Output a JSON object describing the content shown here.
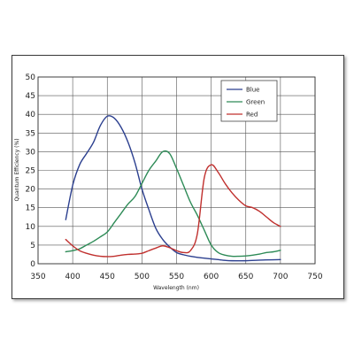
{
  "chart_data": {
    "type": "line",
    "xlabel": "Wavelength (nm)",
    "ylabel": "Quantum Efficiency (%)",
    "xlim": [
      350,
      750
    ],
    "ylim": [
      0,
      50
    ],
    "x_ticks": [
      350,
      400,
      450,
      500,
      550,
      600,
      650,
      700,
      750
    ],
    "y_ticks": [
      0,
      5,
      10,
      15,
      20,
      25,
      30,
      35,
      40,
      45,
      50
    ],
    "grid": true,
    "legend_position": "top-right",
    "series": [
      {
        "name": "Blue",
        "color": "#2b3f8f",
        "points": [
          [
            390,
            11.8
          ],
          [
            400,
            21
          ],
          [
            410,
            26.5
          ],
          [
            420,
            29.5
          ],
          [
            430,
            32.5
          ],
          [
            440,
            37
          ],
          [
            450,
            39.5
          ],
          [
            460,
            39
          ],
          [
            470,
            36.5
          ],
          [
            480,
            32.5
          ],
          [
            490,
            27
          ],
          [
            500,
            20
          ],
          [
            510,
            14.5
          ],
          [
            520,
            9.5
          ],
          [
            530,
            6.5
          ],
          [
            540,
            4.5
          ],
          [
            550,
            3
          ],
          [
            560,
            2.4
          ],
          [
            570,
            2
          ],
          [
            580,
            1.7
          ],
          [
            590,
            1.5
          ],
          [
            600,
            1.3
          ],
          [
            610,
            1.1
          ],
          [
            620,
            0.9
          ],
          [
            630,
            0.8
          ],
          [
            650,
            0.8
          ],
          [
            675,
            1
          ],
          [
            700,
            1.1
          ]
        ]
      },
      {
        "name": "Green",
        "color": "#2e8b57",
        "points": [
          [
            390,
            3.2
          ],
          [
            400,
            3.5
          ],
          [
            410,
            4
          ],
          [
            420,
            5
          ],
          [
            430,
            6
          ],
          [
            440,
            7.2
          ],
          [
            450,
            8.5
          ],
          [
            460,
            11
          ],
          [
            470,
            13.5
          ],
          [
            480,
            16
          ],
          [
            490,
            18
          ],
          [
            500,
            21.5
          ],
          [
            510,
            25
          ],
          [
            520,
            27.5
          ],
          [
            530,
            30
          ],
          [
            540,
            29.5
          ],
          [
            550,
            25.5
          ],
          [
            560,
            21
          ],
          [
            570,
            16.5
          ],
          [
            580,
            13
          ],
          [
            590,
            9
          ],
          [
            600,
            5
          ],
          [
            610,
            3
          ],
          [
            620,
            2.3
          ],
          [
            630,
            2
          ],
          [
            640,
            2
          ],
          [
            650,
            2.1
          ],
          [
            660,
            2.3
          ],
          [
            670,
            2.6
          ],
          [
            680,
            3
          ],
          [
            690,
            3.2
          ],
          [
            700,
            3.6
          ]
        ]
      },
      {
        "name": "Red",
        "color": "#c0302e",
        "points": [
          [
            390,
            6.5
          ],
          [
            400,
            4.8
          ],
          [
            410,
            3.5
          ],
          [
            420,
            2.8
          ],
          [
            430,
            2.3
          ],
          [
            440,
            2
          ],
          [
            450,
            1.9
          ],
          [
            460,
            2
          ],
          [
            470,
            2.3
          ],
          [
            480,
            2.5
          ],
          [
            490,
            2.6
          ],
          [
            500,
            2.8
          ],
          [
            510,
            3.5
          ],
          [
            520,
            4.2
          ],
          [
            530,
            4.8
          ],
          [
            540,
            4.3
          ],
          [
            550,
            3.5
          ],
          [
            560,
            3
          ],
          [
            570,
            3.5
          ],
          [
            580,
            8
          ],
          [
            590,
            23
          ],
          [
            600,
            26.5
          ],
          [
            610,
            24.5
          ],
          [
            620,
            21.5
          ],
          [
            630,
            19
          ],
          [
            640,
            17
          ],
          [
            650,
            15.5
          ],
          [
            660,
            15
          ],
          [
            670,
            14
          ],
          [
            680,
            12.5
          ],
          [
            690,
            11
          ],
          [
            700,
            10
          ]
        ]
      }
    ]
  }
}
